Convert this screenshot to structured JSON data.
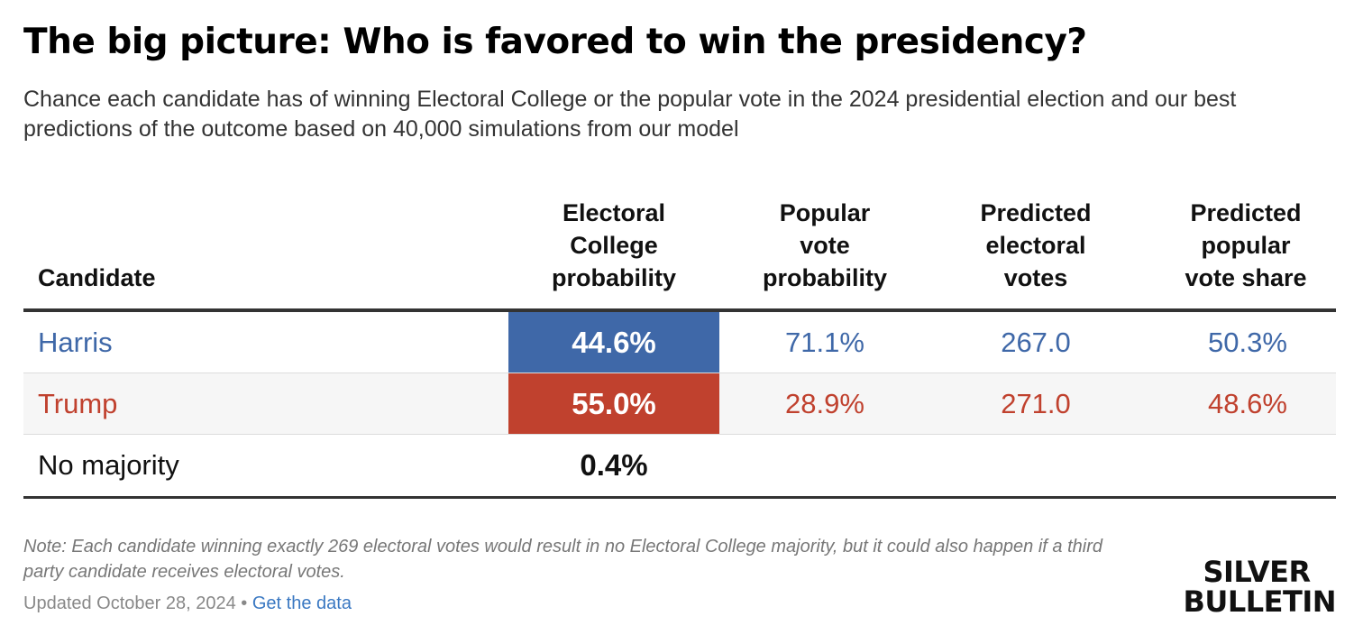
{
  "title": "The big picture: Who is favored to win the presidency?",
  "subtitle": "Chance each candidate has of winning Electoral College or the popular vote in the 2024 presidential election and our best predictions of the outcome based on 40,000 simulations from our model",
  "colors": {
    "harris": "#3f68a8",
    "trump": "#c0412e",
    "neutral": "#111111"
  },
  "chart_data": {
    "type": "table",
    "columns": [
      "Candidate",
      "Electoral\nCollege\nprobability",
      "Popular\nvote\nprobability",
      "Predicted\nelectoral\nvotes",
      "Predicted\npopular\nvote share"
    ],
    "rows": [
      {
        "candidate": "Harris",
        "electoral_college_probability": "44.6%",
        "popular_vote_probability": "71.1%",
        "predicted_electoral_votes": "267.0",
        "predicted_popular_vote_share": "50.3%",
        "color": "#3f68a8"
      },
      {
        "candidate": "Trump",
        "electoral_college_probability": "55.0%",
        "popular_vote_probability": "28.9%",
        "predicted_electoral_votes": "271.0",
        "predicted_popular_vote_share": "48.6%",
        "color": "#c0412e"
      },
      {
        "candidate": "No majority",
        "electoral_college_probability": "0.4%",
        "popular_vote_probability": "",
        "predicted_electoral_votes": "",
        "predicted_popular_vote_share": "",
        "color": "#111111"
      }
    ]
  },
  "note": "Note: Each candidate winning exactly 269 electoral votes would result in no Electoral College majority, but it could also happen if a third party candidate receives electoral votes.",
  "footer": {
    "updated": "Updated October 28, 2024",
    "separator": " • ",
    "link": "Get the data"
  },
  "logo": {
    "line1": "SILVER",
    "line2": "BULLETIN"
  }
}
